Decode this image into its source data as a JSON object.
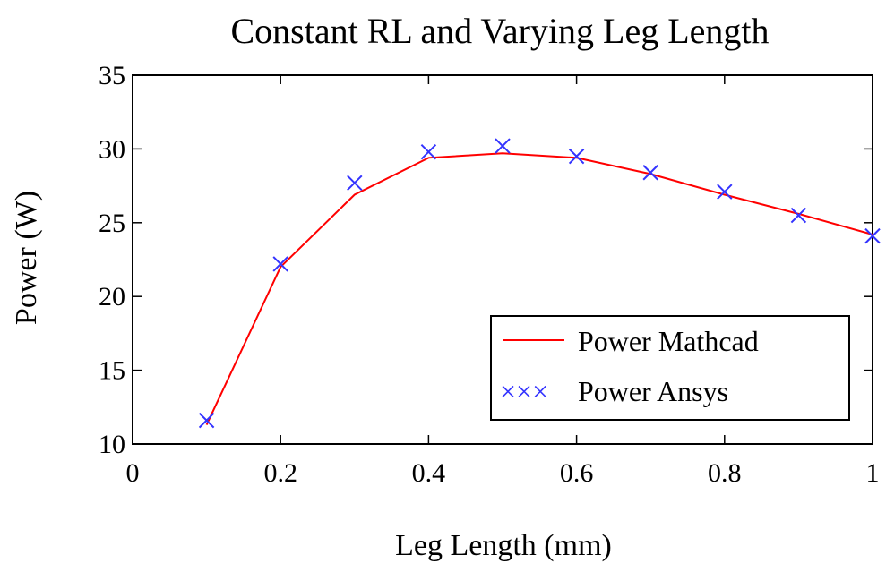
{
  "chart_data": {
    "type": "line",
    "title": "Constant RL and Varying Leg Length",
    "xlabel": "Leg Length (mm)",
    "ylabel": "Power (W)",
    "xlim": [
      0,
      1
    ],
    "ylim": [
      10,
      35
    ],
    "xticks": [
      0,
      0.2,
      0.4,
      0.6,
      0.8,
      1
    ],
    "xtick_labels": [
      "0",
      "0.2",
      "0.4",
      "0.6",
      "0.8",
      "1"
    ],
    "yticks": [
      10,
      15,
      20,
      25,
      30,
      35
    ],
    "ytick_labels": [
      "10",
      "15",
      "20",
      "25",
      "30",
      "35"
    ],
    "grid": false,
    "legend_position": "lower-right",
    "series": [
      {
        "name": "Power Mathcad",
        "style": "line",
        "color": "#ff0000",
        "legend_symbol": "line",
        "x": [
          0.1,
          0.2,
          0.3,
          0.4,
          0.5,
          0.6,
          0.7,
          0.8,
          0.9,
          1.0
        ],
        "y": [
          11.3,
          22.0,
          26.9,
          29.4,
          29.7,
          29.4,
          28.3,
          26.9,
          25.6,
          24.2
        ]
      },
      {
        "name": "Power Ansys",
        "style": "marker",
        "marker": "x",
        "color": "#3333ff",
        "legend_symbol": "×××",
        "x": [
          0.1,
          0.2,
          0.3,
          0.4,
          0.5,
          0.6,
          0.7,
          0.8,
          0.9,
          1.0
        ],
        "y": [
          11.6,
          22.2,
          27.7,
          29.8,
          30.2,
          29.5,
          28.4,
          27.1,
          25.5,
          24.1
        ]
      }
    ]
  }
}
